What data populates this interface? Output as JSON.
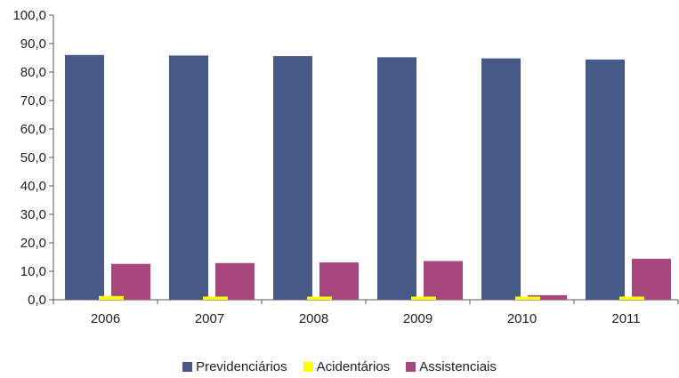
{
  "chart_data": {
    "type": "bar",
    "categories": [
      "2006",
      "2007",
      "2008",
      "2009",
      "2010",
      "2011"
    ],
    "series": [
      {
        "name": "Previdenciários",
        "values": [
          86.0,
          85.8,
          85.6,
          85.2,
          84.8,
          84.4
        ],
        "color": "#475a87"
      },
      {
        "name": "Acidentários",
        "values": [
          1.3,
          1.1,
          1.1,
          1.1,
          1.1,
          1.1
        ],
        "color": "#ffff00"
      },
      {
        "name": "Assistenciais",
        "values": [
          12.6,
          12.9,
          13.1,
          13.6,
          1.6,
          14.4
        ],
        "color": "#a8467e"
      }
    ],
    "y_ticks": [
      "0,0",
      "10,0",
      "20,0",
      "30,0",
      "40,0",
      "50,0",
      "60,0",
      "70,0",
      "80,0",
      "90,0",
      "100,0"
    ],
    "ylim": [
      0,
      100
    ],
    "grid": false,
    "legend_position": "bottom"
  }
}
